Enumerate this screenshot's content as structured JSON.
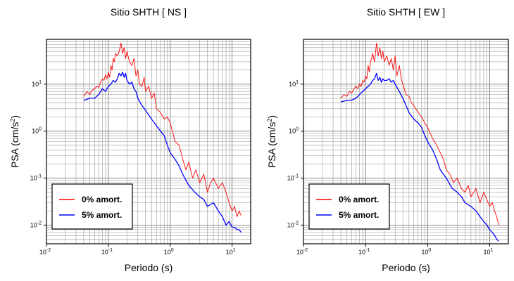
{
  "chart_data": [
    {
      "type": "line",
      "title": "Sitio SHTH [ NS ]",
      "xlabel": "Periodo (s)",
      "ylabel_main": "PSA (cm/s",
      "ylabel_sup": "2",
      "ylabel_close": ")",
      "x_scale": "log",
      "y_scale": "log",
      "xlim": [
        0.01,
        20
      ],
      "ylim": [
        0.004,
        90
      ],
      "grid": true,
      "legend_position": "bottom-left",
      "x_ticks": [
        {
          "base": "10",
          "exp": "-2"
        },
        {
          "base": "10",
          "exp": "-1"
        },
        {
          "base": "10",
          "exp": "0"
        },
        {
          "base": "10",
          "exp": "1"
        }
      ],
      "y_ticks": [
        {
          "base": "10",
          "exp": "-2"
        },
        {
          "base": "10",
          "exp": "-1"
        },
        {
          "base": "10",
          "exp": "0"
        },
        {
          "base": "10",
          "exp": "1"
        }
      ],
      "series": [
        {
          "name": "0% amort.",
          "color": "#ff0000",
          "x": [
            0.04,
            0.045,
            0.05,
            0.055,
            0.06,
            0.065,
            0.07,
            0.075,
            0.08,
            0.085,
            0.09,
            0.095,
            0.1,
            0.105,
            0.11,
            0.115,
            0.12,
            0.125,
            0.13,
            0.14,
            0.15,
            0.16,
            0.17,
            0.18,
            0.19,
            0.2,
            0.22,
            0.24,
            0.26,
            0.28,
            0.3,
            0.32,
            0.35,
            0.38,
            0.4,
            0.45,
            0.5,
            0.55,
            0.6,
            0.7,
            0.8,
            0.9,
            1.0,
            1.2,
            1.4,
            1.6,
            1.8,
            2.0,
            2.3,
            2.6,
            3.0,
            3.5,
            4.0,
            4.5,
            5.0,
            6.0,
            7.0,
            8.0,
            9.0,
            10.0,
            11.0,
            12.0,
            13.0,
            14.0
          ],
          "y": [
            5.5,
            7.0,
            6.0,
            7.5,
            8.0,
            9.0,
            8.5,
            11.0,
            13.0,
            12.0,
            16.0,
            13.0,
            18.0,
            14.0,
            25.0,
            20.0,
            35.0,
            30.0,
            45.0,
            40.0,
            50.0,
            75.0,
            45.0,
            60.0,
            35.0,
            50.0,
            30.0,
            25.0,
            35.0,
            15.0,
            20.0,
            10.0,
            9.0,
            14.0,
            7.0,
            9.0,
            5.0,
            6.5,
            3.0,
            2.5,
            1.8,
            2.0,
            1.5,
            0.6,
            0.5,
            0.25,
            0.15,
            0.22,
            0.1,
            0.15,
            0.08,
            0.12,
            0.05,
            0.08,
            0.1,
            0.06,
            0.08,
            0.05,
            0.03,
            0.02,
            0.025,
            0.015,
            0.02,
            0.016
          ]
        },
        {
          "name": "5% amort.",
          "color": "#0000ff",
          "x": [
            0.04,
            0.05,
            0.06,
            0.07,
            0.08,
            0.09,
            0.1,
            0.11,
            0.12,
            0.13,
            0.14,
            0.15,
            0.16,
            0.17,
            0.18,
            0.19,
            0.2,
            0.22,
            0.24,
            0.26,
            0.28,
            0.3,
            0.35,
            0.4,
            0.45,
            0.5,
            0.6,
            0.7,
            0.8,
            0.9,
            1.0,
            1.2,
            1.4,
            1.6,
            1.8,
            2.0,
            2.5,
            3.0,
            3.5,
            4.0,
            5.0,
            6.0,
            7.0,
            8.0,
            9.0,
            10.0,
            11.0,
            12.0,
            13.0,
            14.0
          ],
          "y": [
            4.5,
            5.0,
            5.0,
            6.0,
            8.0,
            7.0,
            9.0,
            10.0,
            12.0,
            11.0,
            13.0,
            17.0,
            15.0,
            18.0,
            14.0,
            17.0,
            12.0,
            10.0,
            11.0,
            8.0,
            7.0,
            5.0,
            3.5,
            2.8,
            2.2,
            1.8,
            1.3,
            1.0,
            0.8,
            0.5,
            0.35,
            0.25,
            0.18,
            0.12,
            0.09,
            0.07,
            0.05,
            0.04,
            0.035,
            0.025,
            0.03,
            0.02,
            0.015,
            0.01,
            0.012,
            0.009,
            0.009,
            0.008,
            0.008,
            0.007
          ]
        }
      ]
    },
    {
      "type": "line",
      "title": "Sitio SHTH [ EW ]",
      "xlabel": "Periodo (s)",
      "ylabel_main": "PSA (cm/s",
      "ylabel_sup": "2",
      "ylabel_close": ")",
      "x_scale": "log",
      "y_scale": "log",
      "xlim": [
        0.01,
        20
      ],
      "ylim": [
        0.004,
        90
      ],
      "grid": true,
      "legend_position": "bottom-left",
      "x_ticks": [
        {
          "base": "10",
          "exp": "-2"
        },
        {
          "base": "10",
          "exp": "-1"
        },
        {
          "base": "10",
          "exp": "0"
        },
        {
          "base": "10",
          "exp": "1"
        }
      ],
      "y_ticks": [
        {
          "base": "10",
          "exp": "-2"
        },
        {
          "base": "10",
          "exp": "-1"
        },
        {
          "base": "10",
          "exp": "0"
        },
        {
          "base": "10",
          "exp": "1"
        }
      ],
      "series": [
        {
          "name": "0% amort.",
          "color": "#ff0000",
          "x": [
            0.04,
            0.045,
            0.05,
            0.055,
            0.06,
            0.065,
            0.07,
            0.075,
            0.08,
            0.085,
            0.09,
            0.095,
            0.1,
            0.105,
            0.11,
            0.115,
            0.12,
            0.125,
            0.13,
            0.14,
            0.15,
            0.16,
            0.17,
            0.18,
            0.19,
            0.2,
            0.22,
            0.24,
            0.26,
            0.28,
            0.3,
            0.32,
            0.35,
            0.38,
            0.4,
            0.45,
            0.5,
            0.55,
            0.6,
            0.7,
            0.8,
            0.9,
            1.0,
            1.2,
            1.4,
            1.6,
            1.8,
            2.0,
            2.3,
            2.6,
            3.0,
            3.5,
            4.0,
            4.5,
            5.0,
            6.0,
            7.0,
            8.0,
            9.0,
            10.0,
            11.0,
            12.0,
            13.0,
            14.0
          ],
          "y": [
            5.0,
            6.0,
            5.5,
            7.0,
            6.5,
            8.0,
            9.0,
            8.0,
            10.0,
            9.0,
            12.0,
            11.0,
            15.0,
            13.0,
            25.0,
            18.0,
            30.0,
            35.0,
            45.0,
            30.0,
            75.0,
            40.0,
            60.0,
            35.0,
            50.0,
            30.0,
            40.0,
            25.0,
            35.0,
            20.0,
            40.0,
            15.0,
            25.0,
            12.0,
            10.0,
            6.0,
            5.5,
            4.0,
            3.5,
            2.5,
            2.0,
            1.5,
            1.2,
            0.7,
            0.5,
            0.35,
            0.25,
            0.15,
            0.12,
            0.08,
            0.1,
            0.06,
            0.05,
            0.07,
            0.04,
            0.06,
            0.03,
            0.05,
            0.035,
            0.025,
            0.03,
            0.02,
            0.015,
            0.01
          ]
        },
        {
          "name": "5% amort.",
          "color": "#0000ff",
          "x": [
            0.04,
            0.05,
            0.06,
            0.07,
            0.08,
            0.09,
            0.1,
            0.11,
            0.12,
            0.13,
            0.14,
            0.15,
            0.16,
            0.17,
            0.18,
            0.19,
            0.2,
            0.22,
            0.24,
            0.26,
            0.28,
            0.3,
            0.35,
            0.4,
            0.45,
            0.5,
            0.6,
            0.7,
            0.8,
            0.9,
            1.0,
            1.2,
            1.4,
            1.6,
            1.8,
            2.0,
            2.5,
            3.0,
            3.5,
            4.0,
            5.0,
            6.0,
            7.0,
            8.0,
            9.0,
            10.0,
            11.0,
            12.0,
            13.0,
            14.0
          ],
          "y": [
            4.2,
            4.5,
            4.6,
            5.0,
            6.0,
            7.0,
            8.0,
            9.0,
            10.0,
            12.0,
            13.0,
            17.0,
            12.0,
            14.0,
            11.0,
            13.0,
            12.0,
            12.0,
            13.0,
            11.0,
            12.0,
            10.0,
            7.0,
            5.0,
            3.5,
            2.5,
            1.8,
            1.5,
            1.2,
            0.8,
            0.6,
            0.4,
            0.25,
            0.15,
            0.12,
            0.1,
            0.06,
            0.05,
            0.04,
            0.03,
            0.025,
            0.02,
            0.015,
            0.012,
            0.01,
            0.008,
            0.007,
            0.006,
            0.005,
            0.0045
          ]
        }
      ]
    }
  ]
}
